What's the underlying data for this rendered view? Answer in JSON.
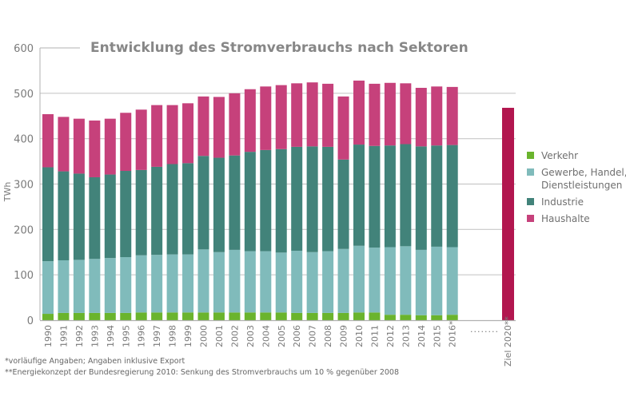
{
  "chart_data": {
    "type": "bar",
    "stacked": true,
    "title": "Entwicklung des Stromverbrauchs nach Sektoren",
    "xlabel": "",
    "ylabel": "TWh",
    "ylim": [
      0,
      600
    ],
    "yticks": [
      0,
      100,
      200,
      300,
      400,
      500,
      600
    ],
    "grid": true,
    "legend_position": "right",
    "categories": [
      "1990",
      "1991",
      "1992",
      "1993",
      "1994",
      "1995",
      "1996",
      "1997",
      "1998",
      "1999",
      "2000",
      "2001",
      "2002",
      "2003",
      "2004",
      "2005",
      "2006",
      "2007",
      "2008",
      "2009",
      "2010",
      "2011",
      "2012",
      "2013",
      "2014",
      "2015",
      "2016*"
    ],
    "series": [
      {
        "name": "Verkehr",
        "color": "#6ab42d",
        "values": [
          14,
          16,
          16,
          16,
          16,
          16,
          17,
          17,
          17,
          17,
          17,
          17,
          17,
          17,
          17,
          17,
          16,
          16,
          16,
          16,
          17,
          17,
          12,
          12,
          11,
          11,
          12
        ]
      },
      {
        "name": "Gewerbe, Handel, Dienstleistungen",
        "color": "#80bbbb",
        "values": [
          116,
          116,
          117,
          119,
          121,
          123,
          126,
          127,
          128,
          128,
          139,
          133,
          138,
          135,
          135,
          132,
          137,
          134,
          136,
          141,
          147,
          143,
          149,
          151,
          144,
          151,
          149
        ]
      },
      {
        "name": "Industrie",
        "color": "#42837a",
        "values": [
          207,
          196,
          190,
          180,
          184,
          190,
          188,
          194,
          199,
          201,
          206,
          208,
          208,
          219,
          223,
          228,
          229,
          233,
          230,
          197,
          223,
          224,
          224,
          225,
          228,
          223,
          225
        ]
      },
      {
        "name": "Haushalte",
        "color": "#c6417b",
        "values": [
          117,
          120,
          121,
          125,
          123,
          128,
          133,
          136,
          130,
          132,
          131,
          134,
          137,
          138,
          140,
          141,
          140,
          141,
          139,
          139,
          141,
          137,
          138,
          134,
          129,
          130,
          128
        ]
      }
    ],
    "target": {
      "label": "Ziel 2020**",
      "value": 468,
      "color": "#b2164f"
    },
    "gap_marker": "........"
  },
  "legend": [
    {
      "label_lines": [
        "Verkehr"
      ],
      "color": "#6ab42d"
    },
    {
      "label_lines": [
        "Gewerbe, Handel,",
        "Dienstleistungen"
      ],
      "color": "#80bbbb"
    },
    {
      "label_lines": [
        "Industrie"
      ],
      "color": "#42837a"
    },
    {
      "label_lines": [
        "Haushalte"
      ],
      "color": "#c6417b"
    }
  ],
  "footnotes": {
    "line1": "*vorläufige Angaben; Angaben inklusive Export",
    "line2": "**Energiekonzept der Bundesregierung 2010: Senkung des Stromverbrauchs um 10 % gegenüber 2008"
  }
}
